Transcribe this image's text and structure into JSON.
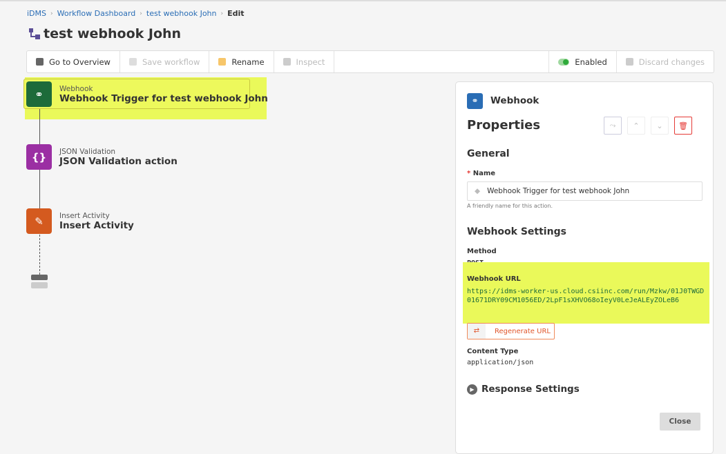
{
  "breadcrumb": [
    "iDMS",
    "Workflow Dashboard",
    "test webhook John",
    "Edit"
  ],
  "title": "test webhook John",
  "toolbar": {
    "overview": "Go to Overview",
    "save": "Save workflow",
    "rename": "Rename",
    "inspect": "Inspect",
    "enabled": "Enabled",
    "discard": "Discard changes"
  },
  "nodes": [
    {
      "type": "Webhook",
      "title": "Webhook Trigger for test webhook John",
      "color": "#1d6b3a"
    },
    {
      "type": "JSON Validation",
      "title": "JSON Validation action",
      "color": "#9b2fa3"
    },
    {
      "type": "Insert Activity",
      "title": "Insert Activity",
      "color": "#d45a1f"
    }
  ],
  "panel": {
    "type": "Webhook",
    "heading": "Properties",
    "general": "General",
    "name_label": "Name",
    "name_value": "Webhook Trigger for  test webhook John",
    "name_help": "A friendly name for this action.",
    "settings": "Webhook Settings",
    "method_label": "Method",
    "method": "POST",
    "url_label": "Webhook URL",
    "url": "https://idms-worker-us.cloud.csiinc.com/run/Mzkw/01J0TWGD01671DRY09CM1056ED/2LpF1sXHVO68oIeyV0LeJeALEyZOLeB6",
    "regen": "Regenerate URL",
    "ct_label": "Content Type",
    "ct": "application/json",
    "response": "Response Settings",
    "close": "Close"
  },
  "colors": {
    "highlight": "#eaf95a",
    "delete": "#e53935",
    "link": "#2a6db5"
  }
}
